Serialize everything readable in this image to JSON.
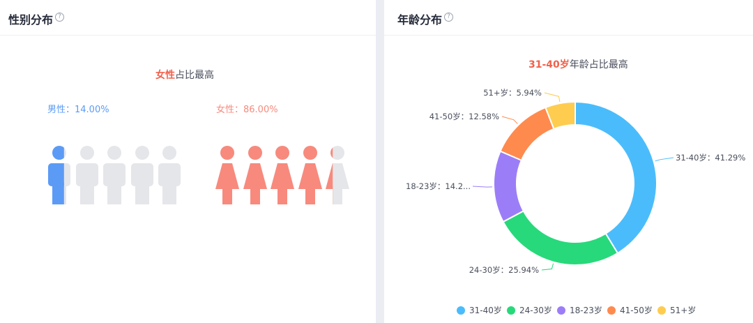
{
  "gender": {
    "title": "性别分布",
    "help_icon": "question-circle-icon",
    "headline_highlight": "女性",
    "headline_rest": "占比最高",
    "male_label": "男性：14.00%",
    "female_label": "女性：86.00%",
    "male_color": "#5b9bf6",
    "female_color": "#f78a7d",
    "empty_color": "#e5e6ea"
  },
  "age": {
    "title": "年龄分布",
    "help_icon": "question-circle-icon",
    "headline_highlight": "31-40岁",
    "headline_rest": "年龄占比最高"
  },
  "chart_data": [
    {
      "type": "bar",
      "title": "性别分布",
      "categories": [
        "男性",
        "女性"
      ],
      "values": [
        14.0,
        86.0
      ],
      "unit": "%",
      "colors": [
        "#5b9bf6",
        "#f78a7d"
      ]
    },
    {
      "type": "pie",
      "variant": "donut",
      "title": "年龄分布",
      "categories": [
        "31-40岁",
        "24-30岁",
        "18-23岁",
        "41-50岁",
        "51+岁"
      ],
      "values": [
        41.29,
        25.94,
        14.25,
        12.58,
        5.94
      ],
      "callouts": [
        "31-40岁：41.29%",
        "24-30岁：25.94%",
        "18-23岁：14.2...",
        "41-50岁：12.58%",
        "51+岁：5.94%"
      ],
      "colors": [
        "#4bbcfb",
        "#27d97a",
        "#9c7df8",
        "#ff8a4e",
        "#fecc4f"
      ],
      "legend_position": "bottom"
    }
  ]
}
